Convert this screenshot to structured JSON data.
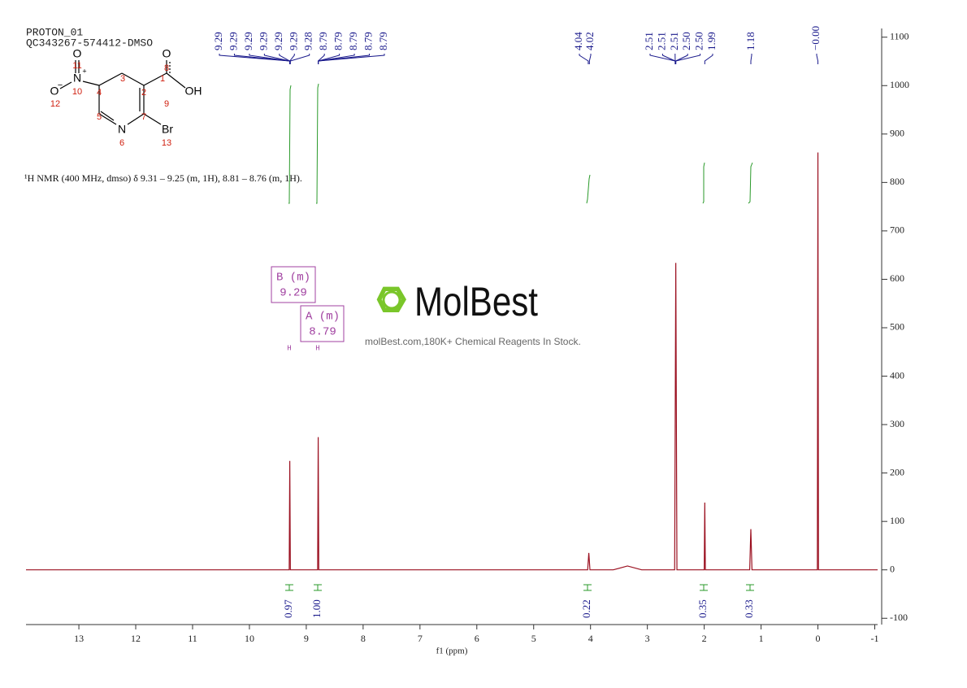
{
  "header": {
    "title": "PROTON_01",
    "sample": "QC343267-574412-DMSO"
  },
  "description": "¹H NMR (400 MHz, dmso) δ 9.31 – 9.25 (m, 1H), 8.81 – 8.76 (m, 1H).",
  "structure": {
    "atoms": [
      "O",
      "OH",
      "N",
      "Br",
      "N",
      "+",
      "O",
      "O",
      "−"
    ],
    "numbers": [
      "1",
      "2",
      "3",
      "4",
      "5",
      "6",
      "7",
      "8",
      "9",
      "10",
      "11",
      "12",
      "13"
    ]
  },
  "multiplets": [
    {
      "name": "B (m)",
      "shift": "9.29",
      "atom": "H"
    },
    {
      "name": "A (m)",
      "shift": "8.79",
      "atom": "H"
    }
  ],
  "watermark": {
    "brand": "MolBest",
    "tagline": "molBest.com,180K+ Chemical Reagents In Stock."
  },
  "chart_data": {
    "type": "line",
    "x_label": "f1 (ppm)",
    "xlim": [
      13.93,
      -1.05
    ],
    "xticks": [
      13,
      12,
      11,
      10,
      9,
      8,
      7,
      6,
      5,
      4,
      3,
      2,
      1,
      0,
      -1
    ],
    "ylim": [
      -113,
      1118
    ],
    "yticks": [
      -100,
      0,
      100,
      200,
      300,
      400,
      500,
      600,
      700,
      800,
      900,
      1000,
      1100
    ],
    "series": [
      {
        "color": "#9b1020",
        "x": [
          13.93,
          9.3,
          9.29,
          9.28,
          8.8,
          8.79,
          8.78,
          4.05,
          4.03,
          4.01,
          3.6,
          3.35,
          3.1,
          2.52,
          2.5,
          2.48,
          2.0,
          1.99,
          1.98,
          1.2,
          1.18,
          1.16,
          0.01,
          0.0,
          -0.01,
          -1.05
        ],
        "values": [
          0,
          0,
          225,
          0,
          0,
          274,
          0,
          0,
          35,
          0,
          0,
          8,
          0,
          0,
          634,
          0,
          0,
          139,
          0,
          0,
          84,
          0,
          0,
          862,
          0,
          0
        ]
      }
    ],
    "peak_labels": [
      9.29,
      9.29,
      9.29,
      9.29,
      9.29,
      9.29,
      9.28,
      8.79,
      8.79,
      8.79,
      8.79,
      8.79,
      4.04,
      4.02,
      2.51,
      2.51,
      2.51,
      {
        "value": 2.5,
        "label": "2.50"
      },
      {
        "value": 2.5,
        "label": "2.50"
      },
      1.99,
      1.18,
      {
        "value": 0,
        "label": "−0.00"
      }
    ],
    "integrals": [
      0.97,
      {
        "value": 1,
        "label": "1.00"
      },
      0.22,
      0.35,
      0.33
    ]
  }
}
